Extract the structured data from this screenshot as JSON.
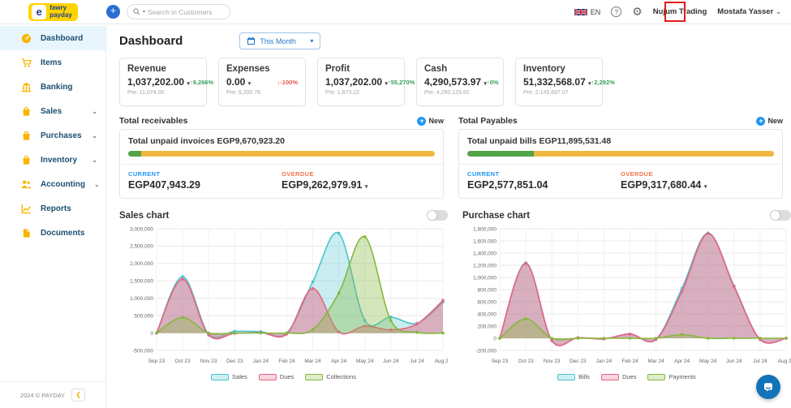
{
  "icons": {
    "caret_down": "▾",
    "chevron_down": "⌄",
    "plus": "+",
    "question": "?",
    "gear": "⚙",
    "collapse": "❮",
    "logo_glyph": "e"
  },
  "colors": {
    "brand_yellow": "#ffd400",
    "brand_blue": "#1d3e8f",
    "accent_blue": "#2196f3",
    "progress_green": "#52a447",
    "progress_yellow": "#f0b840",
    "overdue_orange": "#f4754e",
    "trend_green": "#3aa05c",
    "trend_red": "#e2574c",
    "annotation_red": "#e01b1b"
  },
  "topbar": {
    "logo_line1": "fawry",
    "logo_line2": "payday",
    "search": {
      "placeholder": "Search in Customers"
    },
    "language": "EN",
    "company": "Nujum Trading",
    "user": "Mostafa Yasser"
  },
  "sidebar": {
    "items": [
      {
        "label": "Dashboard"
      },
      {
        "label": "Items"
      },
      {
        "label": "Banking"
      },
      {
        "label": "Sales"
      },
      {
        "label": "Purchases"
      },
      {
        "label": "Inventory"
      },
      {
        "label": "Accounting"
      },
      {
        "label": "Reports"
      },
      {
        "label": "Documents"
      }
    ],
    "footer": {
      "copyright": "2024 © PAYDAY"
    }
  },
  "header": {
    "title": "Dashboard",
    "period_selector": "This Month"
  },
  "kpis": [
    {
      "title": "Revenue",
      "value": "1,037,202.00",
      "arrow": "↑",
      "trend_pct": "9,266%",
      "previous": "Pre: 11,074.00"
    },
    {
      "title": "Expenses",
      "value": "0.00",
      "arrow": "↓",
      "trend_pct": "-100%",
      "previous": "Pre: 9,200.78"
    },
    {
      "title": "Profit",
      "value": "1,037,202.00",
      "arrow": "↑",
      "trend_pct": "55,270%",
      "previous": "Pre: 1,873.22"
    },
    {
      "title": "Cash",
      "value": "4,290,573.97",
      "arrow": "↑",
      "trend_pct": "0%",
      "previous": "Pre: 4,290,129.82"
    },
    {
      "title": "Inventory",
      "value": "51,332,568.07",
      "arrow": "↑",
      "trend_pct": "2,292%",
      "previous": "Pre: 2,145,697.07"
    }
  ],
  "receivables": {
    "title": "Total receivables",
    "new_label": "New",
    "summary": "Total unpaid invoices EGP9,670,923.20",
    "progress_pct": 4.2,
    "current_label": "CURRENT",
    "current_value": "EGP407,943.29",
    "overdue_label": "OVERDUE",
    "overdue_value": "EGP9,262,979.91"
  },
  "payables": {
    "title": "Total Payables",
    "new_label": "New",
    "summary": "Total unpaid bills EGP11,895,531.48",
    "progress_pct": 21.7,
    "current_label": "CURRENT",
    "current_value": "EGP2,577,851.04",
    "overdue_label": "OVERDUE",
    "overdue_value": "EGP9,317,680.44"
  },
  "chart_data": [
    {
      "type": "area",
      "title": "Sales chart",
      "x": [
        "Sep 23",
        "Oct 23",
        "Nov 23",
        "Dec 23",
        "Jan 24",
        "Feb 24",
        "Mar 24",
        "Apr 24",
        "May 24",
        "Jun 24",
        "Jul 24",
        "Aug 24"
      ],
      "series": [
        {
          "name": "Sales",
          "color": "#4cc3ce",
          "fill_opacity": 0.3,
          "values": [
            0,
            1620000,
            -30000,
            50000,
            40000,
            0,
            1470000,
            2870000,
            360000,
            460000,
            280000,
            890000
          ]
        },
        {
          "name": "Dues",
          "color": "#e86383",
          "fill_opacity": 0.45,
          "values": [
            0,
            1550000,
            -60000,
            -10000,
            10000,
            -30000,
            1280000,
            30000,
            200000,
            90000,
            260000,
            940000
          ]
        },
        {
          "name": "Collections",
          "color": "#85b83c",
          "fill_opacity": 0.35,
          "values": [
            0,
            450000,
            0,
            0,
            0,
            0,
            100000,
            1150000,
            2770000,
            360000,
            20000,
            0
          ]
        }
      ],
      "ylim": [
        -500000,
        3000000
      ],
      "ytick_step": 500000,
      "grid": true,
      "legend_position": "bottom"
    },
    {
      "type": "area",
      "title": "Purchase chart",
      "x": [
        "Sep 23",
        "Oct 23",
        "Nov 23",
        "Dec 23",
        "Jan 24",
        "Feb 24",
        "Mar 24",
        "Apr 24",
        "May 24",
        "Jun 24",
        "Jul 24",
        "Aug 24"
      ],
      "series": [
        {
          "name": "Bills",
          "color": "#4cc3ce",
          "fill_opacity": 0.3,
          "values": [
            0,
            1240000,
            -40000,
            10000,
            -10000,
            70000,
            -20000,
            820000,
            1730000,
            860000,
            -20000,
            0
          ]
        },
        {
          "name": "Dues",
          "color": "#e86383",
          "fill_opacity": 0.45,
          "values": [
            0,
            1230000,
            -40000,
            10000,
            -10000,
            70000,
            -20000,
            770000,
            1720000,
            850000,
            -20000,
            0
          ]
        },
        {
          "name": "Payments",
          "color": "#85b83c",
          "fill_opacity": 0.35,
          "values": [
            0,
            320000,
            0,
            0,
            0,
            0,
            0,
            60000,
            0,
            0,
            0,
            0
          ]
        }
      ],
      "ylim": [
        -200000,
        1800000
      ],
      "ytick_step": 200000,
      "grid": true,
      "legend_position": "bottom"
    }
  ]
}
